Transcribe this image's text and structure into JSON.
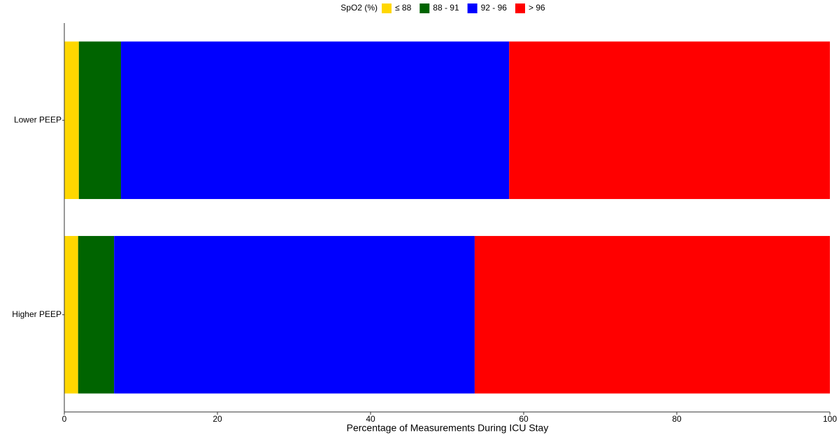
{
  "chart_data": {
    "type": "stacked-barh",
    "legend_title": "SpO2 (%)",
    "x_label": "Percentage of Measurements During ICU Stay",
    "categories": [
      "Lower PEEP",
      "Higher PEEP"
    ],
    "series": [
      {
        "name": "≤ 88",
        "color": "#ffd700",
        "values": [
          1.9,
          1.8
        ]
      },
      {
        "name": "88 - 91",
        "color": "#006400",
        "values": [
          5.5,
          4.7
        ]
      },
      {
        "name": "92 - 96",
        "color": "#0000ff",
        "values": [
          50.7,
          47.1
        ]
      },
      {
        "name": "> 96",
        "color": "#ff0000",
        "values": [
          41.9,
          46.4
        ]
      }
    ],
    "xlim": [
      0,
      100
    ],
    "xticks": [
      0,
      20,
      40,
      60,
      80,
      100
    ],
    "legend_position": "top"
  }
}
